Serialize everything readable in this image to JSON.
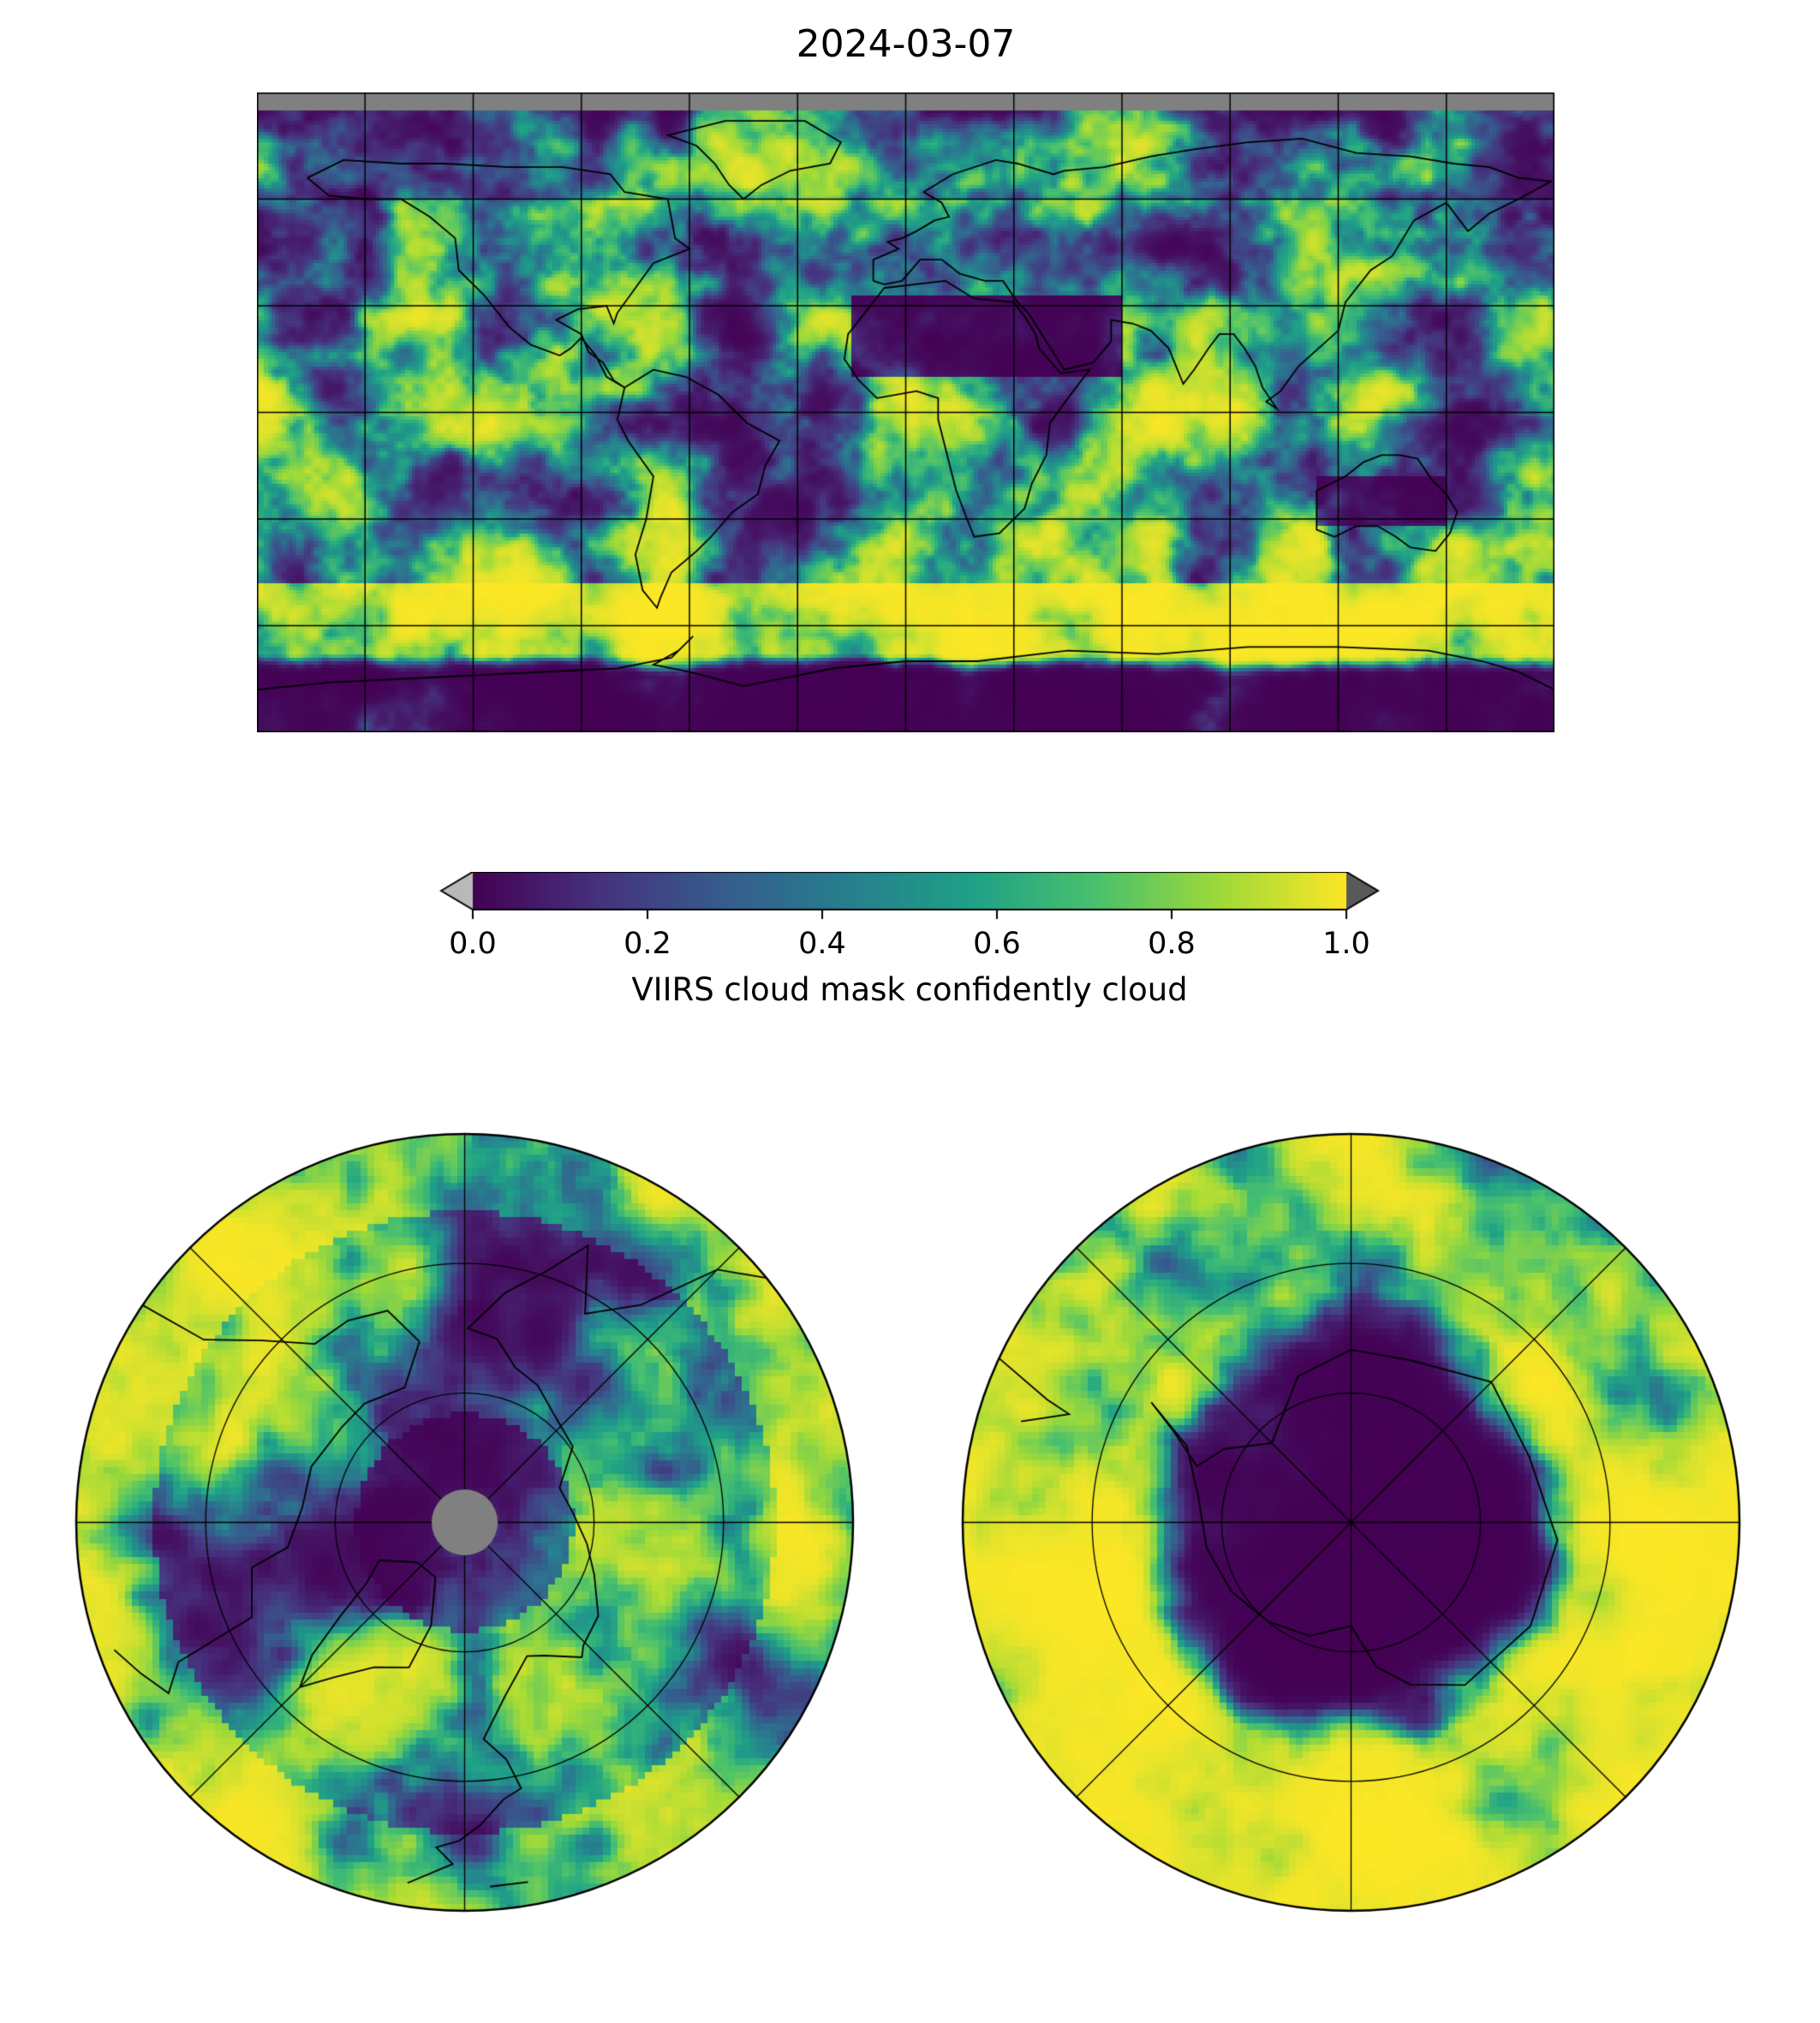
{
  "title": "2024-03-07",
  "colorbar": {
    "label": "VIIRS cloud mask confidently cloud",
    "ticks": [
      "0.0",
      "0.2",
      "0.4",
      "0.6",
      "0.8",
      "1.0"
    ],
    "tick_values": [
      0,
      0.2,
      0.4,
      0.6,
      0.8,
      1.0
    ],
    "range": [
      0,
      1
    ],
    "colormap": "viridis",
    "under_color": "#b9b9b9",
    "over_color": "#595959",
    "viridis_stops": [
      "#440154",
      "#46327e",
      "#365c8d",
      "#277f8e",
      "#1fa187",
      "#4ac16d",
      "#a0da39",
      "#fde725"
    ]
  },
  "nodata_color": "#808080",
  "panels": [
    {
      "name": "global-map",
      "projection": "equirectangular global map",
      "gridline_spacing_deg": 30
    },
    {
      "name": "north-polar-map",
      "projection": "north polar stereographic",
      "pole_hole": "gray no-data disk at pole"
    },
    {
      "name": "south-polar-map",
      "projection": "south polar stereographic"
    }
  ],
  "chart_data": {
    "type": "heatmap",
    "title": "2024-03-07",
    "value_label": "VIIRS cloud mask confidently cloud",
    "value_range": [
      0.0,
      1.0
    ],
    "colorbar_ticks": [
      0.0,
      0.2,
      0.4,
      0.6,
      0.8,
      1.0
    ],
    "colormap": "viridis",
    "colorbar_extend": "both (light-gray under arrow, dark-gray over arrow)",
    "legend_position": "horizontal colorbar centered below global map",
    "panels": [
      {
        "projection": "equirectangular global map with coastlines, 30-degree graticule",
        "notes": "daily global cloud-fraction raster; gray no-data band along the top (far north) edge; predominantly clear (dark purple, ~0) over Sahara, Arabia, interior Eurasia and central Antarctica; predominantly cloudy (yellow, ~1) over Southern Ocean, midlatitude storm tracks and subtropical oceans"
      },
      {
        "projection": "north polar view with latitude circles and 45-degree meridians",
        "notes": "gray no-data disk at the pole; mixed clear (purple) patches over the Arctic basin and large cloudy (yellow) regions toward the edge"
      },
      {
        "projection": "south polar view with latitude circles and 45-degree meridians",
        "notes": "clear (dark purple) over the Antarctic interior, mostly cloudy (yellow) ring over the surrounding Southern Ocean"
      }
    ]
  }
}
